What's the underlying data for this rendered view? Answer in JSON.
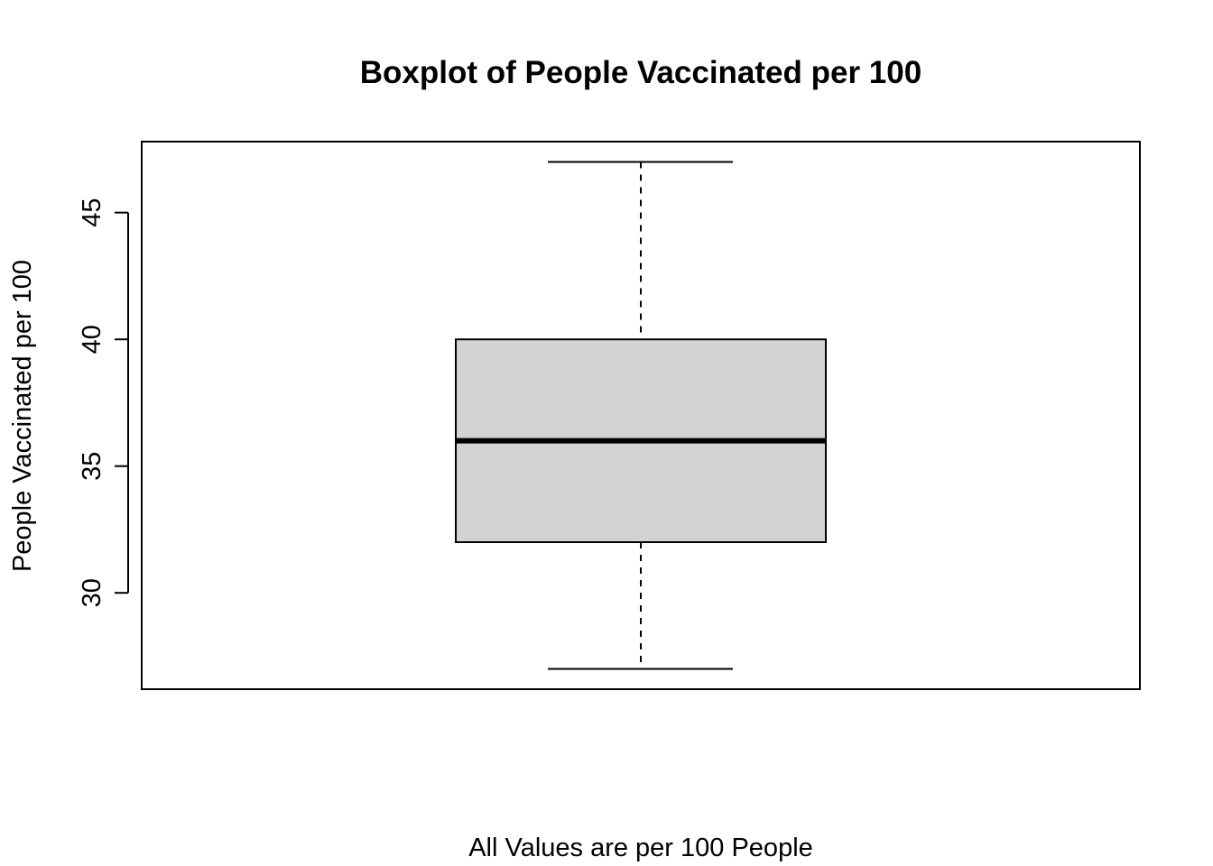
{
  "chart_data": {
    "type": "boxplot",
    "title": "Boxplot of People Vaccinated per 100",
    "xlabel": "All Values are per 100 People",
    "ylabel": "People Vaccinated per 100",
    "ylim": [
      26.2,
      47.8
    ],
    "y_ticks": [
      "30",
      "35",
      "40",
      "45"
    ],
    "grid": false,
    "box": {
      "whisker_low": 27,
      "q1": 32,
      "median": 36,
      "q3": 40,
      "whisker_high": 47
    },
    "colors": {
      "box_fill": "#d3d3d3",
      "stroke": "#000000"
    }
  }
}
